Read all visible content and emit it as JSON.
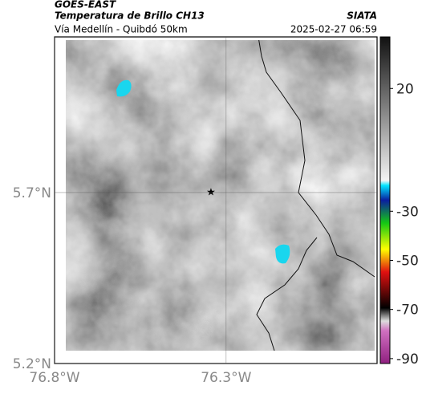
{
  "header": {
    "title": "GOES-EAST",
    "subtitle": "Temperatura de Brillo CH13",
    "source": "SIATA",
    "caption": "Vía Medellín - Quibdó 50km",
    "datetime": "2025-02-27 06:59"
  },
  "map": {
    "xlim": [
      -76.8,
      -75.86
    ],
    "ylim": [
      5.2,
      6.155
    ],
    "xticks": [
      {
        "value": -76.8,
        "label": "76.8°W"
      },
      {
        "value": -76.3,
        "label": "76.3°W"
      }
    ],
    "yticks": [
      {
        "value": 5.7,
        "label": "5.7°N"
      },
      {
        "value": 5.2,
        "label": "5.2°N"
      }
    ]
  },
  "colorbar": {
    "lim": [
      -92,
      41
    ],
    "ticks": [
      20,
      -30,
      -50,
      -70,
      -90
    ]
  }
}
